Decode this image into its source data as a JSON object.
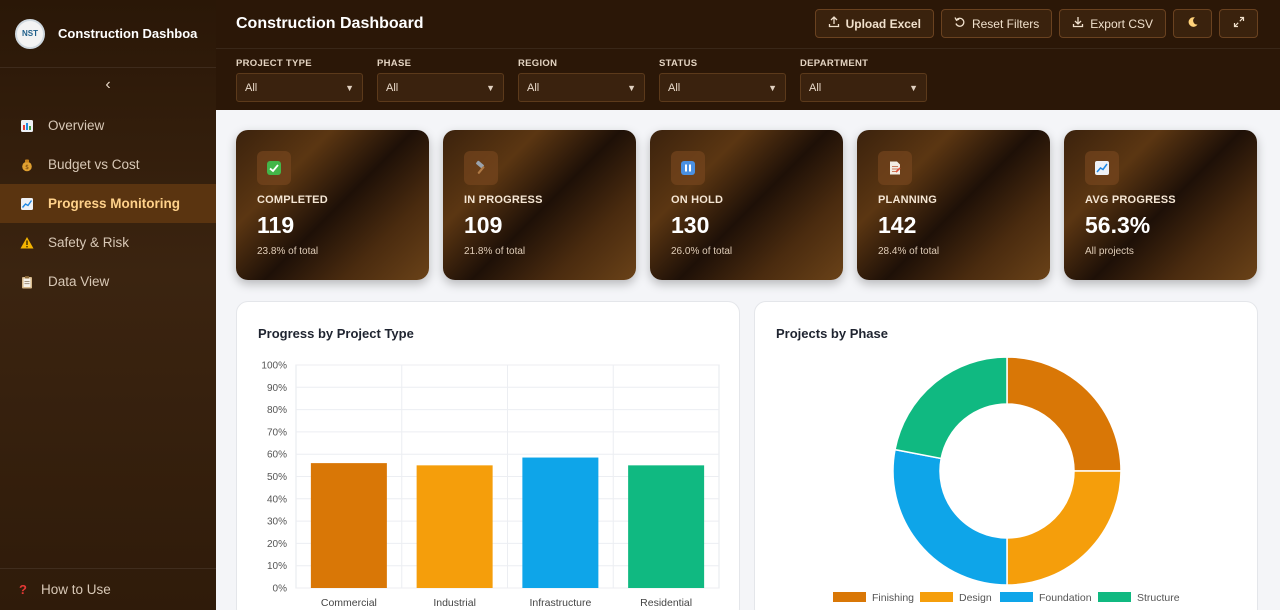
{
  "sidebar": {
    "logo_text": "NST",
    "brand_title": "Construction Dashboar",
    "collapse_icon": "chevron-left-icon",
    "items": [
      {
        "label": "Overview",
        "icon": "bar-chart-icon",
        "active": false
      },
      {
        "label": "Budget vs Cost",
        "icon": "money-bag-icon",
        "active": false
      },
      {
        "label": "Progress Monitoring",
        "icon": "trend-chart-icon",
        "active": true
      },
      {
        "label": "Safety & Risk",
        "icon": "warning-icon",
        "active": false
      },
      {
        "label": "Data View",
        "icon": "clipboard-icon",
        "active": false
      }
    ],
    "how_to_use": "How to Use"
  },
  "header": {
    "title": "Construction Dashboard",
    "toolbar": {
      "upload_label": "Upload Excel",
      "reset_label": "Reset Filters",
      "export_label": "Export CSV"
    }
  },
  "filters": [
    {
      "label": "PROJECT TYPE",
      "value": "All"
    },
    {
      "label": "PHASE",
      "value": "All"
    },
    {
      "label": "REGION",
      "value": "All"
    },
    {
      "label": "STATUS",
      "value": "All"
    },
    {
      "label": "DEPARTMENT",
      "value": "All"
    }
  ],
  "kpis": [
    {
      "label": "COMPLETED",
      "value": "119",
      "sub": "23.8% of total",
      "icon": "check-icon"
    },
    {
      "label": "IN PROGRESS",
      "value": "109",
      "sub": "21.8% of total",
      "icon": "hammer-icon"
    },
    {
      "label": "ON HOLD",
      "value": "130",
      "sub": "26.0% of total",
      "icon": "pause-icon"
    },
    {
      "label": "PLANNING",
      "value": "142",
      "sub": "28.4% of total",
      "icon": "document-icon"
    },
    {
      "label": "AVG PROGRESS",
      "value": "56.3%",
      "sub": "All projects",
      "icon": "chart-icon"
    }
  ],
  "charts": {
    "bar_title": "Progress by Project Type",
    "donut_title": "Projects by Phase"
  },
  "colors": {
    "commercial": "#d97706",
    "industrial": "#f59e0b",
    "infrastructure": "#0ea5e9",
    "residential": "#10b981"
  },
  "chart_data": [
    {
      "type": "bar",
      "title": "Progress by Project Type",
      "categories": [
        "Commercial",
        "Industrial",
        "Infrastructure",
        "Residential"
      ],
      "values": [
        56,
        55,
        58.5,
        55
      ],
      "ylim": [
        0,
        100
      ],
      "yticks": [
        "0%",
        "10%",
        "20%",
        "30%",
        "40%",
        "50%",
        "60%",
        "70%",
        "80%",
        "90%",
        "100%"
      ],
      "colors": [
        "#d97706",
        "#f59e0b",
        "#0ea5e9",
        "#10b981"
      ],
      "grid": true
    },
    {
      "type": "pie",
      "title": "Projects by Phase",
      "categories": [
        "Finishing",
        "Design",
        "Foundation",
        "Structure"
      ],
      "values": [
        25,
        25,
        28,
        22
      ],
      "colors": [
        "#d97706",
        "#f59e0b",
        "#0ea5e9",
        "#10b981"
      ],
      "legend": "bottom"
    }
  ]
}
